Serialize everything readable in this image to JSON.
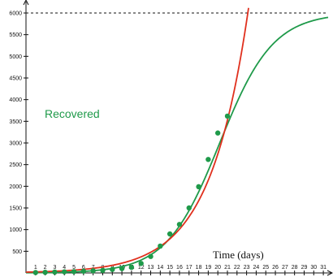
{
  "chart_data": {
    "type": "scatter",
    "title": "",
    "xlabel": "Time (days)",
    "ylabel": "",
    "xlim": [
      0,
      31.5
    ],
    "ylim": [
      0,
      6150
    ],
    "x_ticks": [
      1,
      2,
      3,
      4,
      5,
      6,
      7,
      8,
      9,
      10,
      11,
      12,
      13,
      14,
      15,
      16,
      17,
      18,
      19,
      20,
      21,
      22,
      23,
      24,
      25,
      26,
      27,
      28,
      29,
      30,
      31
    ],
    "y_ticks": [
      500,
      1000,
      1500,
      2000,
      2500,
      3000,
      3500,
      4000,
      4500,
      5000,
      5500,
      6000
    ],
    "grid": false,
    "series": [
      {
        "name": "Recovered",
        "kind": "points",
        "color": "#1f9a4a",
        "x": [
          1,
          2,
          3,
          4,
          5,
          6,
          7,
          8,
          9,
          10,
          11,
          12,
          13,
          14,
          15,
          16,
          17,
          18,
          19,
          20,
          21
        ],
        "y": [
          10,
          15,
          20,
          25,
          30,
          40,
          50,
          60,
          80,
          100,
          130,
          220,
          380,
          620,
          900,
          1120,
          1500,
          1990,
          2620,
          3230,
          3620
        ]
      },
      {
        "name": "",
        "kind": "logistic-curve",
        "color": "#1f9a4a",
        "params": {
          "K": 6000,
          "x0": 20.2,
          "k": 0.36
        }
      },
      {
        "name": "",
        "kind": "exponential-curve",
        "color": "#e0301e",
        "params": {
          "a": 18.5,
          "b": 0.25
        }
      }
    ],
    "reference_line": {
      "y": 6000,
      "style": "dashed",
      "color": "#111111"
    },
    "annotations": [
      "Recovered"
    ]
  }
}
